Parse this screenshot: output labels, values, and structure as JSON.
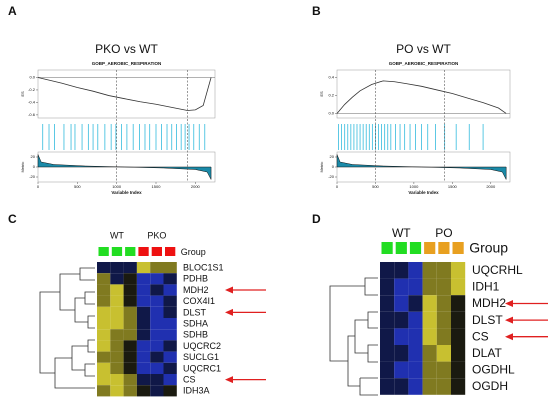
{
  "chart_data": [
    {
      "type": "line",
      "panel": "A",
      "title": "PKO vs WT",
      "subtitle": "GOBP_AEROBIC_RESPIRATION",
      "ylabel": "ES",
      "xlabel": "Variable Index",
      "x": [
        0,
        100,
        300,
        500,
        700,
        900,
        1100,
        1300,
        1500,
        1700,
        1900,
        2000,
        2100,
        2200
      ],
      "values": [
        0,
        -0.03,
        -0.09,
        -0.16,
        -0.22,
        -0.29,
        -0.34,
        -0.39,
        -0.43,
        -0.48,
        -0.53,
        -0.52,
        -0.45,
        0
      ],
      "xlim": [
        0,
        2250
      ],
      "ylim": [
        -0.65,
        0.12
      ],
      "yticks": [
        {
          "value": 0,
          "label": "0.0"
        },
        -0.2,
        -0.4,
        -0.6
      ],
      "xticks": [
        0,
        500,
        1000,
        1500,
        2000
      ],
      "vlines": [
        1000,
        1900
      ],
      "hits": [
        60,
        140,
        210,
        330,
        420,
        470,
        560,
        640,
        700,
        760,
        850,
        930,
        990,
        1060,
        1130,
        1210,
        1290,
        1360,
        1420,
        1500,
        1570,
        1640,
        1700,
        1760,
        1820,
        1870,
        1920,
        1980,
        2050,
        2120
      ],
      "metric": {
        "ylabel": "Metric",
        "x": [
          0,
          40,
          200,
          600,
          1100,
          1600,
          2000,
          2150,
          2200
        ],
        "values": [
          25,
          10,
          5,
          2,
          0,
          -2,
          -5,
          -10,
          -25
        ],
        "ylim": [
          -30,
          30
        ],
        "yticks": [
          -20,
          0,
          20
        ]
      },
      "color": "#333333",
      "hit_color": "#33bbdd",
      "metric_color": "#1a8aa8"
    },
    {
      "type": "line",
      "panel": "B",
      "title": "PO vs WT",
      "subtitle": "GOBP_AEROBIC_RESPIRATION",
      "ylabel": "ES",
      "xlabel": "Variable Index",
      "x": [
        0,
        100,
        200,
        300,
        450,
        600,
        750,
        900,
        1100,
        1300,
        1500,
        1700,
        1900,
        2100,
        2200
      ],
      "values": [
        0,
        0.1,
        0.18,
        0.25,
        0.32,
        0.36,
        0.35,
        0.33,
        0.3,
        0.26,
        0.22,
        0.17,
        0.12,
        0.06,
        0
      ],
      "xlim": [
        0,
        2250
      ],
      "ylim": [
        -0.05,
        0.48
      ],
      "yticks": [
        {
          "value": 0,
          "label": "0.0"
        },
        0.2,
        0.4
      ],
      "xticks": [
        0,
        500,
        1000,
        1500,
        2000
      ],
      "vlines": [
        500,
        1400
      ],
      "hits": [
        20,
        60,
        100,
        140,
        180,
        220,
        260,
        300,
        340,
        380,
        420,
        460,
        500,
        540,
        580,
        620,
        660,
        700,
        760,
        820,
        880,
        950,
        1020,
        1100,
        1180,
        1280,
        1400,
        1550,
        1720,
        1900
      ],
      "metric": {
        "ylabel": "Metric",
        "x": [
          0,
          40,
          200,
          600,
          1100,
          1600,
          2000,
          2150,
          2200
        ],
        "values": [
          25,
          10,
          5,
          2,
          0,
          -2,
          -5,
          -10,
          -25
        ],
        "ylim": [
          -30,
          30
        ],
        "yticks": [
          -20,
          0,
          20
        ]
      },
      "color": "#333333",
      "hit_color": "#33bbdd",
      "metric_color": "#1a8aa8"
    }
  ],
  "heatmaps": [
    {
      "panel": "C",
      "group_label": "Group",
      "groups": [
        {
          "name": "WT",
          "color": "#22dd22"
        },
        {
          "name": "PKO",
          "color": "#ee1111"
        }
      ],
      "genes": [
        "BLOC1S1",
        "PDHB",
        "MDH2",
        "COX4I1",
        "DLST",
        "SDHA",
        "SDHB",
        "UQCRC2",
        "SUCLG1",
        "UQCRC1",
        "CS",
        "IDH3A"
      ],
      "cells": [
        [
          "#101848",
          "#101848",
          "#101848",
          "#c8c030",
          "#807a20",
          "#807a20"
        ],
        [
          "#807a20",
          "#101848",
          "#1a1a10",
          "#2030b0",
          "#2030b0",
          "#101848"
        ],
        [
          "#807a20",
          "#c8c030",
          "#1a1a10",
          "#2030b0",
          "#101848",
          "#2030b0"
        ],
        [
          "#807a20",
          "#c8c030",
          "#1a1a10",
          "#2030b0",
          "#2030b0",
          "#101848"
        ],
        [
          "#c8c030",
          "#c8c030",
          "#807a20",
          "#101848",
          "#2030b0",
          "#101848"
        ],
        [
          "#c8c030",
          "#c8c030",
          "#807a20",
          "#101848",
          "#2030b0",
          "#2030b0"
        ],
        [
          "#c8c030",
          "#807a20",
          "#807a20",
          "#101848",
          "#2030b0",
          "#2030b0"
        ],
        [
          "#c8c030",
          "#807a20",
          "#1a1a10",
          "#2030b0",
          "#2030b0",
          "#101848"
        ],
        [
          "#807a20",
          "#807a20",
          "#1a1a10",
          "#2030b0",
          "#101848",
          "#2030b0"
        ],
        [
          "#c8c030",
          "#807a20",
          "#1a1a10",
          "#2030b0",
          "#2030b0",
          "#101848"
        ],
        [
          "#c8c030",
          "#c8c030",
          "#807a20",
          "#101848",
          "#101848",
          "#2030b0"
        ],
        [
          "#807a20",
          "#c8c030",
          "#807a20",
          "#1a1a10",
          "#101848",
          "#1a1a10"
        ]
      ],
      "marked": [
        "MDH2",
        "DLST",
        "CS"
      ]
    },
    {
      "panel": "D",
      "group_label": "Group",
      "groups": [
        {
          "name": "WT",
          "color": "#22dd22"
        },
        {
          "name": "PO",
          "color": "#e8a020"
        }
      ],
      "genes": [
        "UQCRHL",
        "IDH1",
        "MDH2",
        "DLST",
        "CS",
        "DLAT",
        "OGDHL",
        "OGDH"
      ],
      "cells": [
        [
          "#101848",
          "#101848",
          "#2030b0",
          "#807a20",
          "#807a20",
          "#c8c030"
        ],
        [
          "#101848",
          "#2030b0",
          "#2030b0",
          "#807a20",
          "#807a20",
          "#c8c030"
        ],
        [
          "#101848",
          "#2030b0",
          "#101848",
          "#c8c030",
          "#807a20",
          "#1a1a10"
        ],
        [
          "#101848",
          "#101848",
          "#2030b0",
          "#c8c030",
          "#807a20",
          "#1a1a10"
        ],
        [
          "#101848",
          "#2030b0",
          "#2030b0",
          "#c8c030",
          "#807a20",
          "#1a1a10"
        ],
        [
          "#101848",
          "#101848",
          "#2030b0",
          "#807a20",
          "#c8c030",
          "#1a1a10"
        ],
        [
          "#101848",
          "#2030b0",
          "#2030b0",
          "#807a20",
          "#807a20",
          "#1a1a10"
        ],
        [
          "#101848",
          "#101848",
          "#2030b0",
          "#807a20",
          "#807a20",
          "#1a1a10"
        ]
      ],
      "marked": [
        "MDH2",
        "DLST",
        "CS"
      ]
    }
  ]
}
